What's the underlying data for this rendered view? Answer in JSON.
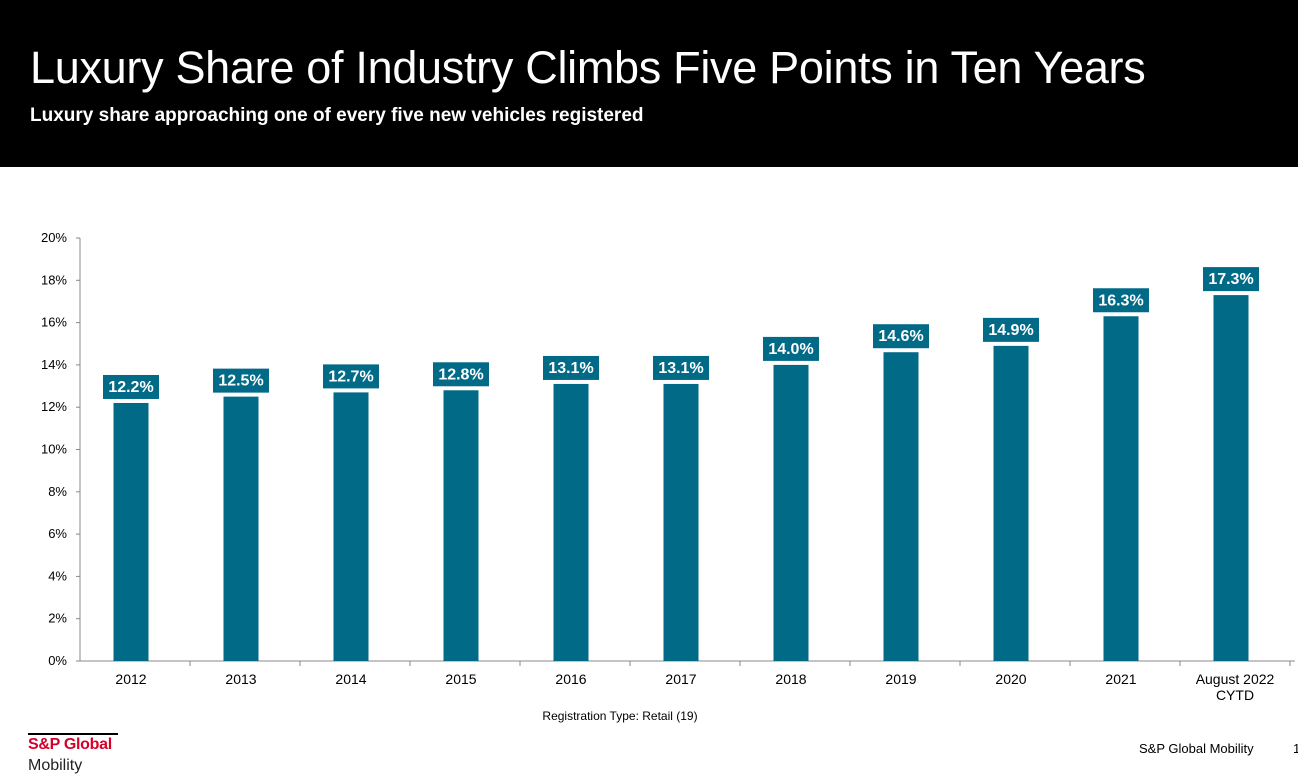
{
  "header": {
    "title": "Luxury Share of Industry Climbs Five Points in Ten Years",
    "subtitle": "Luxury share approaching one of every five new vehicles registered"
  },
  "chart_data": {
    "type": "bar",
    "categories": [
      "2012",
      "2013",
      "2014",
      "2015",
      "2016",
      "2017",
      "2018",
      "2019",
      "2020",
      "2021",
      [
        "August 2022",
        "CYTD"
      ]
    ],
    "values": [
      12.2,
      12.5,
      12.7,
      12.8,
      13.1,
      13.1,
      14.0,
      14.6,
      14.9,
      16.3,
      17.3
    ],
    "data_labels": [
      "12.2%",
      "12.5%",
      "12.7%",
      "12.8%",
      "13.1%",
      "13.1%",
      "14.0%",
      "14.6%",
      "14.9%",
      "16.3%",
      "17.3%"
    ],
    "y_ticks": [
      "0%",
      "2%",
      "4%",
      "6%",
      "8%",
      "10%",
      "12%",
      "14%",
      "16%",
      "18%",
      "20%"
    ],
    "ylim": [
      0,
      20
    ],
    "xlabel": "Registration Type: Retail (19)",
    "bar_color": "#006A87",
    "label_bg_color": "#006A87",
    "grid": false,
    "legend": "none"
  },
  "branding": {
    "logo_line1": "S&P Global",
    "logo_line2": "Mobility",
    "logo_color": "#D6002A",
    "footer_text": "S&P Global Mobility",
    "page_number": "1"
  }
}
